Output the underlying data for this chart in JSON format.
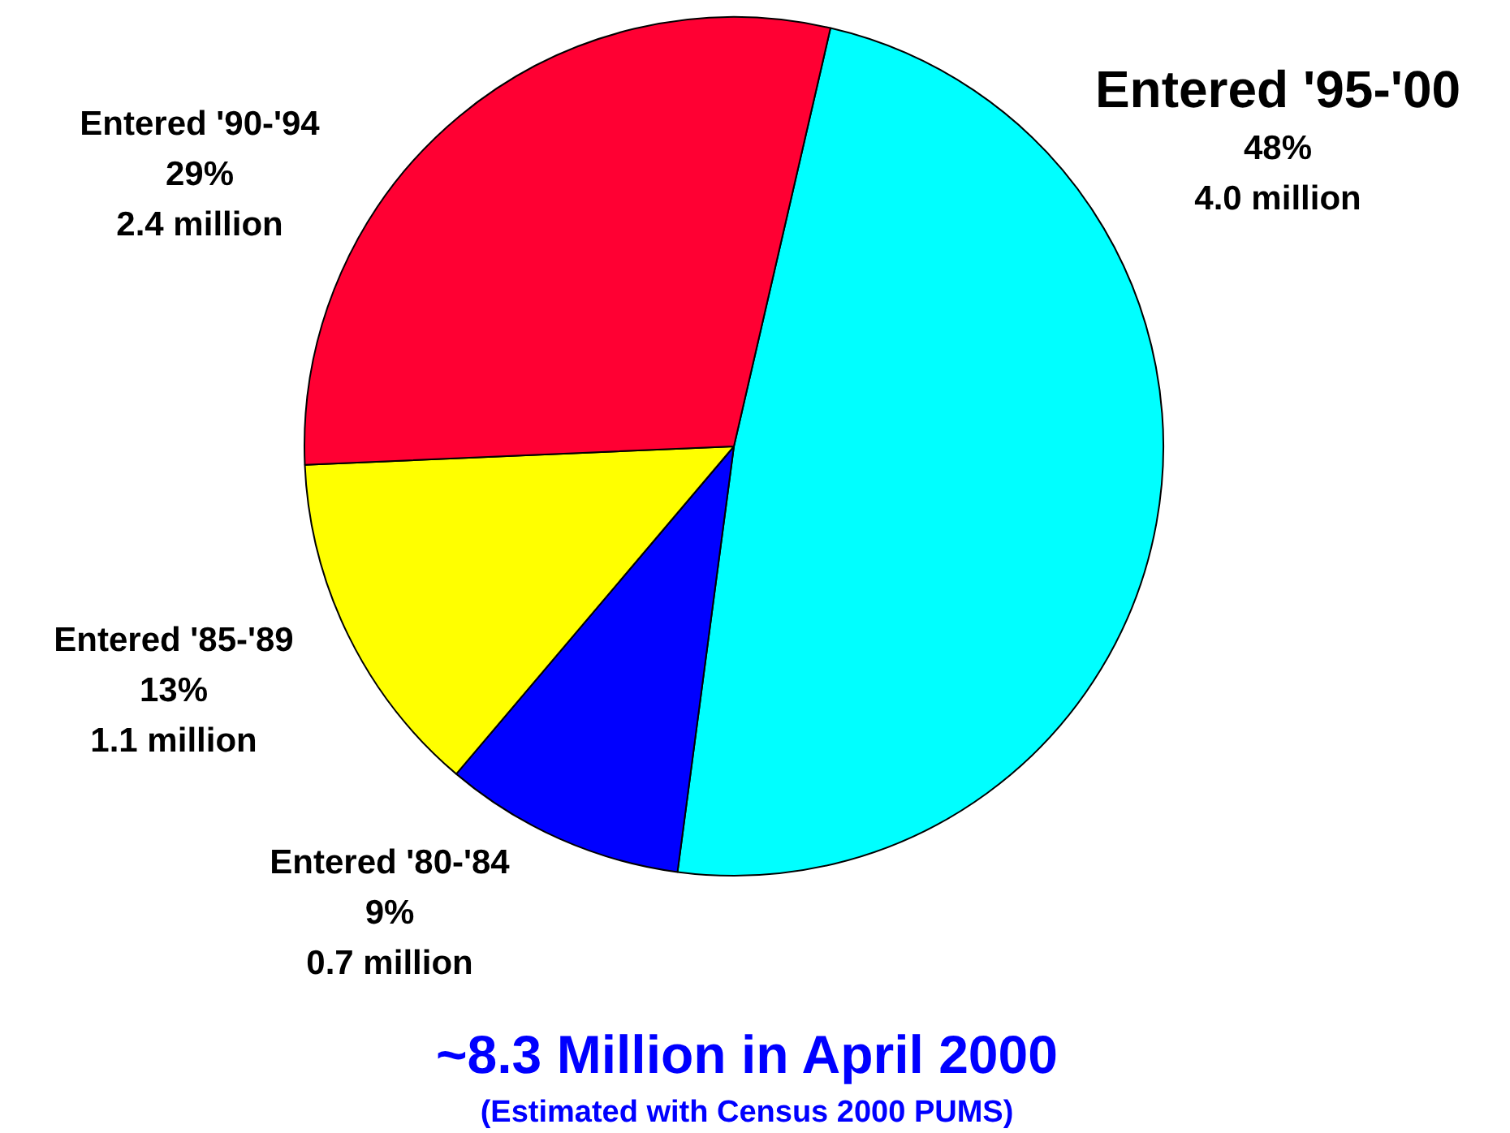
{
  "chart_data": {
    "type": "pie",
    "title": "~8.3 Million in April 2000",
    "subtitle": "(Estimated with Census 2000 PUMS)",
    "categories": [
      "Entered '95-'00",
      "Entered '80-'84",
      "Entered '85-'89",
      "Entered '90-'94"
    ],
    "values": [
      48,
      9,
      13,
      29
    ],
    "colors": [
      "#00ffff",
      "#0000ff",
      "#ffff00",
      "#ff0033"
    ],
    "value_labels": [
      "48%\n4.0 million",
      "9%\n0.7 million",
      "13%\n1.1 million",
      "29%\n2.4 million"
    ]
  }
}
